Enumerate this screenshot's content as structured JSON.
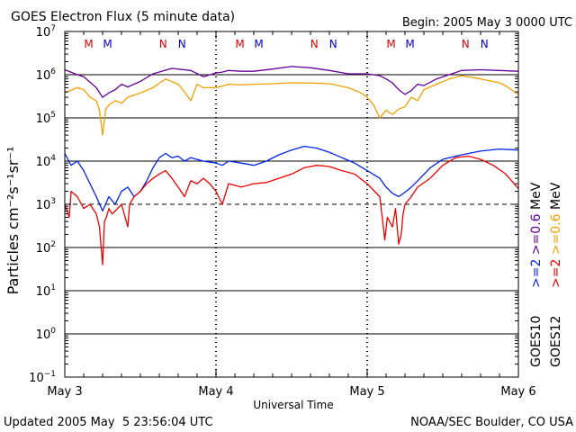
{
  "chart_data": {
    "type": "line",
    "title": "GOES Electron Flux (5 minute data)",
    "begin_label": "Begin: 2005 May 3 0000 UTC",
    "xlabel": "Universal Time",
    "ylabel": "Particles cm⁻²s⁻¹sr⁻¹",
    "y_scale": "log",
    "ylim": [
      0.1,
      10000000
    ],
    "y_ticks": [
      {
        "value": 10000000,
        "base": "10",
        "exp": "7"
      },
      {
        "value": 1000000,
        "base": "10",
        "exp": "6"
      },
      {
        "value": 100000,
        "base": "10",
        "exp": "5"
      },
      {
        "value": 10000,
        "base": "10",
        "exp": "4"
      },
      {
        "value": 1000,
        "base": "10",
        "exp": "3"
      },
      {
        "value": 100,
        "base": "10",
        "exp": "2"
      },
      {
        "value": 10,
        "base": "10",
        "exp": "1"
      },
      {
        "value": 1,
        "base": "10",
        "exp": "0"
      },
      {
        "value": 0.1,
        "base": "10",
        "exp": "−1"
      }
    ],
    "xlim": [
      0,
      72
    ],
    "x_ticks": [
      {
        "hour": 0,
        "label": "May 3"
      },
      {
        "hour": 24,
        "label": "May 4"
      },
      {
        "hour": 48,
        "label": "May 5"
      },
      {
        "hour": 72,
        "label": "May 6"
      }
    ],
    "reference_line": 1000,
    "markers": [
      {
        "hour": 3.8,
        "text": "M",
        "color": "#dd0000"
      },
      {
        "hour": 6.8,
        "text": "M",
        "color": "#0000cc"
      },
      {
        "hour": 15.6,
        "text": "N",
        "color": "#dd0000"
      },
      {
        "hour": 18.6,
        "text": "N",
        "color": "#0000cc"
      },
      {
        "hour": 27.8,
        "text": "M",
        "color": "#dd0000"
      },
      {
        "hour": 30.8,
        "text": "M",
        "color": "#0000cc"
      },
      {
        "hour": 39.6,
        "text": "N",
        "color": "#dd0000"
      },
      {
        "hour": 42.6,
        "text": "N",
        "color": "#0000cc"
      },
      {
        "hour": 51.8,
        "text": "M",
        "color": "#dd0000"
      },
      {
        "hour": 54.8,
        "text": "M",
        "color": "#0000cc"
      },
      {
        "hour": 63.6,
        "text": "N",
        "color": "#dd0000"
      },
      {
        "hour": 66.6,
        "text": "N",
        "color": "#0000cc"
      }
    ],
    "series": [
      {
        "name": "GOES10 >=0.6 MeV",
        "color": "#660099",
        "x": [
          0,
          2,
          3,
          5,
          6,
          7,
          8,
          9,
          10,
          12,
          14,
          17,
          20,
          22,
          24,
          25,
          26,
          28,
          30,
          33,
          36,
          39,
          42,
          45,
          48,
          50,
          51,
          52,
          53,
          54,
          55,
          56,
          57,
          59,
          61,
          63,
          66,
          69,
          72
        ],
        "y": [
          1300000,
          1000000,
          900000,
          500000,
          300000,
          380000,
          450000,
          600000,
          520000,
          700000,
          1050000,
          1400000,
          1250000,
          900000,
          1100000,
          1150000,
          1250000,
          1200000,
          1200000,
          1350000,
          1550000,
          1450000,
          1250000,
          1050000,
          1050000,
          950000,
          800000,
          650000,
          450000,
          350000,
          430000,
          600000,
          560000,
          800000,
          1000000,
          1250000,
          1300000,
          1250000,
          1200000
        ]
      },
      {
        "name": "GOES12 >=0.6 MeV",
        "color": "#f0a000",
        "x": [
          0,
          2,
          3,
          4,
          5,
          5.5,
          6,
          6.5,
          7,
          8,
          9,
          10,
          12,
          14,
          16,
          18,
          19,
          20,
          21,
          22,
          24,
          25,
          26,
          28,
          30,
          33,
          36,
          39,
          42,
          45,
          47,
          48,
          49,
          50,
          51,
          52,
          53,
          54,
          55,
          56,
          57,
          59,
          61,
          63,
          66,
          69,
          70,
          72
        ],
        "y": [
          380000,
          500000,
          450000,
          300000,
          250000,
          150000,
          40000,
          160000,
          200000,
          250000,
          220000,
          300000,
          380000,
          500000,
          800000,
          600000,
          400000,
          250000,
          600000,
          500000,
          500000,
          540000,
          600000,
          580000,
          600000,
          620000,
          650000,
          640000,
          620000,
          500000,
          380000,
          300000,
          200000,
          100000,
          150000,
          120000,
          160000,
          180000,
          300000,
          250000,
          450000,
          600000,
          800000,
          950000,
          800000,
          650000,
          550000,
          350000
        ]
      },
      {
        "name": "GOES10 >=2 MeV",
        "color": "#0022ee",
        "x": [
          0,
          1,
          2,
          3,
          4,
          5,
          6,
          7,
          8,
          9,
          10,
          11,
          12,
          13,
          14,
          15,
          16,
          17,
          18,
          19,
          20,
          22,
          24,
          25,
          26,
          28,
          30,
          32,
          34,
          36,
          38,
          40,
          42,
          44,
          46,
          48,
          50,
          51,
          52,
          53,
          54,
          55,
          56,
          58,
          60,
          63,
          66,
          69,
          72
        ],
        "y": [
          15000,
          8000,
          10000,
          6000,
          3000,
          1500,
          700,
          1500,
          1000,
          2000,
          2500,
          1500,
          2000,
          3500,
          7000,
          12000,
          15000,
          12000,
          13000,
          10000,
          12000,
          10000,
          9000,
          8000,
          10000,
          9000,
          8000,
          10000,
          14000,
          18000,
          22000,
          20000,
          16000,
          12000,
          9000,
          6000,
          4000,
          2500,
          1800,
          1500,
          1900,
          2500,
          3500,
          7000,
          11000,
          14000,
          17000,
          19000,
          18000
        ]
      },
      {
        "name": "GOES12 >=2 MeV",
        "color": "#ee0000",
        "x": [
          0,
          0.7,
          1,
          2,
          3,
          4,
          5,
          5.5,
          6,
          6.3,
          6.6,
          7,
          7.5,
          8,
          9,
          10,
          10.3,
          11,
          12,
          13,
          14,
          15,
          16,
          17,
          18,
          19,
          20,
          21,
          22,
          23,
          24,
          25,
          26,
          28,
          30,
          32,
          34,
          36,
          38,
          40,
          42,
          44,
          46,
          48,
          50,
          50.8,
          51.2,
          52,
          52.5,
          53,
          53.4,
          53.7,
          54,
          55,
          56,
          58,
          60,
          62,
          64,
          66,
          68,
          70,
          72
        ],
        "y": [
          1000,
          500,
          2000,
          1500,
          800,
          1000,
          600,
          300,
          40,
          400,
          500,
          800,
          600,
          700,
          1000,
          300,
          1000,
          1500,
          2000,
          3000,
          4000,
          5000,
          6000,
          4000,
          2500,
          1500,
          3500,
          3000,
          4000,
          3000,
          2000,
          1000,
          3000,
          2500,
          3000,
          3200,
          4000,
          5000,
          7000,
          8000,
          7500,
          6000,
          5000,
          3000,
          1500,
          150,
          500,
          300,
          800,
          120,
          200,
          600,
          1000,
          1500,
          2500,
          4000,
          8000,
          12000,
          13000,
          11000,
          8000,
          5000,
          2300
        ]
      }
    ],
    "legend": [
      {
        "label": "GOES10",
        "color": "#000000",
        "segments": [
          {
            "text": ">=2 ",
            "color": "#0022ee"
          },
          {
            "text": ">=0.6",
            "color": "#660099"
          },
          {
            "text": " MeV",
            "color": "#000000"
          }
        ]
      },
      {
        "label": "GOES12",
        "color": "#000000",
        "segments": [
          {
            "text": ">=2 ",
            "color": "#ee0000"
          },
          {
            "text": ">=0.6",
            "color": "#f0a000"
          },
          {
            "text": " MeV",
            "color": "#000000"
          }
        ]
      }
    ],
    "grid": true
  },
  "footer": {
    "updated": "Updated 2005 May  5 23:56:04 UTC",
    "source": "NOAA/SEC Boulder, CO USA"
  }
}
